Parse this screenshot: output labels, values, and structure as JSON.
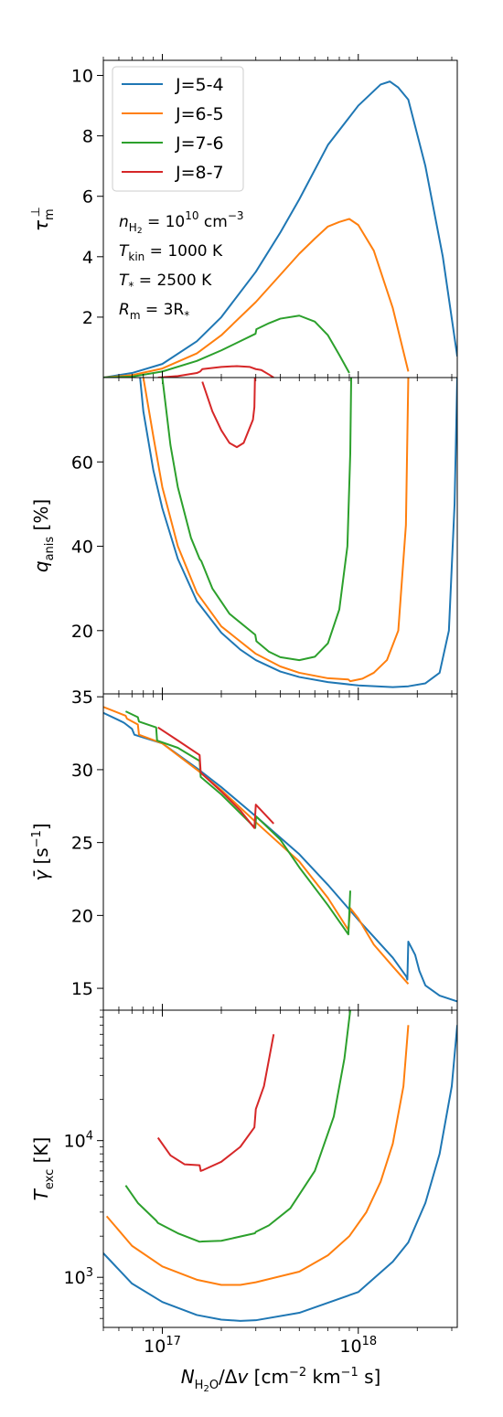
{
  "figure": {
    "xlabel": "N_H2O/Δv [cm^-2 km^-1 s]"
  },
  "legend": {
    "entries": [
      {
        "label": "J=5-4",
        "color": "#1f77b4"
      },
      {
        "label": "J=6-5",
        "color": "#ff7f0e"
      },
      {
        "label": "J=7-6",
        "color": "#2ca02c"
      },
      {
        "label": "J=8-7",
        "color": "#d62728"
      }
    ],
    "placement": "upper-left of top panel"
  },
  "annotations": [
    {
      "var": "n",
      "sub": "H2",
      "rest": " = 10",
      "sup": "10",
      "unit": " cm",
      "unitsup": "−3"
    },
    {
      "var": "T",
      "sub": "kin",
      "rest": " = 1000 K"
    },
    {
      "var": "T",
      "sub": "*",
      "rest": " = 2500 K"
    },
    {
      "var": "R",
      "sub": "m",
      "rest": " = 3R",
      "tail": "*"
    }
  ],
  "chart_data": [
    {
      "type": "line",
      "ylabel": "τ_m^⊥",
      "xscale": "log",
      "yscale": "linear",
      "xlim": [
        5e+16,
        3.2e+18
      ],
      "ylim": [
        0,
        10.5
      ],
      "yticks": [
        2,
        4,
        6,
        8,
        10
      ],
      "xticks": [
        1e+17,
        1e+18
      ],
      "xtick_labels": [
        "10^17",
        "10^18"
      ],
      "series": [
        {
          "name": "J=5-4",
          "color": "#1f77b4",
          "x": [
            5e+16,
            7e+16,
            1e+17,
            1.5e+17,
            2e+17,
            3e+17,
            4e+17,
            5e+17,
            7e+17,
            1e+18,
            1.3e+18,
            1.45e+18,
            1.6e+18,
            1.8e+18,
            2.2e+18,
            2.7e+18,
            3.2e+18
          ],
          "y": [
            0.0,
            0.15,
            0.45,
            1.2,
            2.0,
            3.5,
            4.8,
            5.9,
            7.7,
            9.0,
            9.7,
            9.8,
            9.6,
            9.2,
            7.0,
            4.0,
            0.7
          ]
        },
        {
          "name": "J=6-5",
          "color": "#ff7f0e",
          "x": [
            5e+16,
            7e+16,
            1e+17,
            1.5e+17,
            2e+17,
            3e+17,
            4e+17,
            5e+17,
            6e+17,
            7e+17,
            8e+17,
            9e+17,
            1e+18,
            1.2e+18,
            1.5e+18,
            1.8e+18
          ],
          "y": [
            0.0,
            0.08,
            0.3,
            0.8,
            1.4,
            2.5,
            3.4,
            4.1,
            4.6,
            5.0,
            5.15,
            5.25,
            5.05,
            4.2,
            2.3,
            0.2
          ]
        },
        {
          "name": "J=7-6",
          "color": "#2ca02c",
          "x": [
            5e+16,
            7e+16,
            1e+17,
            1.5e+17,
            2e+17,
            2.99e+17,
            3.02e+17,
            3.5e+17,
            4e+17,
            5e+17,
            6e+17,
            7e+17,
            8e+17,
            9e+17
          ],
          "y": [
            0.0,
            0.03,
            0.2,
            0.55,
            0.9,
            1.45,
            1.6,
            1.8,
            1.95,
            2.05,
            1.85,
            1.4,
            0.75,
            0.15
          ]
        },
        {
          "name": "J=8-7",
          "color": "#d62728",
          "x": [
            9.5e+16,
            1.2e+17,
            1.5e+17,
            1.56e+17,
            1.6e+17,
            2e+17,
            2.4e+17,
            2.8e+17,
            3e+17,
            3.2e+17,
            3.5e+17,
            3.7e+17
          ],
          "y": [
            0.0,
            0.05,
            0.15,
            0.2,
            0.28,
            0.35,
            0.38,
            0.35,
            0.28,
            0.25,
            0.1,
            0.0
          ]
        }
      ]
    },
    {
      "type": "line",
      "ylabel": "q_anis [%]",
      "xscale": "log",
      "yscale": "linear",
      "xlim": [
        5e+16,
        3.2e+18
      ],
      "ylim": [
        5,
        80
      ],
      "yticks": [
        20,
        40,
        60
      ],
      "series": [
        {
          "name": "J=5-4",
          "color": "#1f77b4",
          "x": [
            7.7e+16,
            8e+16,
            9e+16,
            1e+17,
            1.2e+17,
            1.5e+17,
            2e+17,
            2.5e+17,
            3e+17,
            4e+17,
            5e+17,
            7e+17,
            1e+18,
            1.5e+18,
            1.8e+18,
            2.2e+18,
            2.6e+18,
            2.9e+18,
            3.1e+18,
            3.2e+18
          ],
          "y": [
            80,
            72,
            58,
            49,
            37,
            27,
            19.5,
            15.5,
            13,
            10.3,
            9,
            7.8,
            7,
            6.6,
            6.8,
            7.5,
            10,
            20,
            50,
            80
          ]
        },
        {
          "name": "J=6-5",
          "color": "#ff7f0e",
          "x": [
            8e+16,
            9e+16,
            1e+17,
            1.2e+17,
            1.5e+17,
            2e+17,
            3e+17,
            4e+17,
            5e+17,
            7e+17,
            8.9e+17,
            9.1e+17,
            1.05e+18,
            1.2e+18,
            1.4e+18,
            1.6e+18,
            1.75e+18,
            1.8e+18
          ],
          "y": [
            80,
            66,
            54,
            40,
            29,
            21,
            14.5,
            11.5,
            10,
            8.7,
            8.4,
            8,
            8.6,
            10,
            13,
            20,
            45,
            80
          ]
        },
        {
          "name": "J=7-6",
          "color": "#2ca02c",
          "x": [
            1e+17,
            1.1e+17,
            1.2e+17,
            1.4e+17,
            1.55e+17,
            1.58e+17,
            1.8e+17,
            2.2e+17,
            2.98e+17,
            3.02e+17,
            3.5e+17,
            4e+17,
            5e+17,
            6e+17,
            7e+17,
            8e+17,
            8.8e+17,
            9.1e+17,
            9.2e+17
          ],
          "y": [
            80,
            64,
            54,
            42,
            37,
            36.5,
            30,
            24,
            19,
            17.5,
            15,
            13.7,
            13,
            13.8,
            17,
            25,
            40,
            62,
            80
          ]
        },
        {
          "name": "J=8-7",
          "color": "#d62728",
          "x": [
            1.6e+17,
            1.8e+17,
            2e+17,
            2.2e+17,
            2.4e+17,
            2.6e+17,
            2.9e+17,
            2.95e+17,
            2.97e+17
          ],
          "y": [
            79,
            72,
            67.5,
            64.5,
            63.5,
            64.5,
            70,
            73,
            80
          ]
        }
      ]
    },
    {
      "type": "line",
      "ylabel": "γ̄ [s^-1]",
      "xscale": "log",
      "yscale": "linear",
      "xlim": [
        5e+16,
        3.2e+18
      ],
      "ylim": [
        13.5,
        35.2
      ],
      "yticks": [
        15,
        20,
        25,
        30,
        35
      ],
      "series": [
        {
          "name": "J=5-4",
          "color": "#1f77b4",
          "x": [
            5e+16,
            6.2e+16,
            6.4e+16,
            7e+16,
            7.2e+16,
            1e+17,
            1.5e+17,
            2e+17,
            3e+17,
            5e+17,
            7e+17,
            1e+18,
            1.5e+18,
            1.76e+18,
            1.78e+18,
            1.8e+18,
            1.95e+18,
            2.05e+18,
            2.2e+18,
            2.6e+18,
            3.2e+18
          ],
          "y": [
            33.9,
            33.3,
            33.2,
            32.8,
            32.4,
            31.8,
            30.1,
            28.8,
            26.8,
            24.2,
            22.1,
            19.7,
            17.1,
            15.8,
            15.6,
            18.2,
            17.3,
            16.2,
            15.2,
            14.5,
            14.1
          ]
        },
        {
          "name": "J=6-5",
          "color": "#ff7f0e",
          "x": [
            5e+16,
            6.5e+16,
            6.6e+16,
            7.5e+16,
            7.6e+16,
            1e+17,
            1.5e+17,
            2e+17,
            3e+17,
            5e+17,
            7e+17,
            8.9e+17,
            9.1e+17,
            1e+18,
            1.2e+18,
            1.5e+18,
            1.8e+18
          ],
          "y": [
            34.3,
            33.7,
            33.5,
            33.1,
            32.4,
            31.8,
            30.0,
            28.6,
            26.4,
            23.7,
            21.2,
            19.0,
            20.5,
            19.8,
            18.0,
            16.5,
            15.3
          ]
        },
        {
          "name": "J=7-6",
          "color": "#2ca02c",
          "x": [
            6.5e+16,
            7.5e+16,
            7.6e+16,
            9.3e+16,
            9.4e+16,
            1.2e+17,
            1.55e+17,
            1.57e+17,
            2e+17,
            2.98e+17,
            3.01e+17,
            4e+17,
            5e+17,
            7e+17,
            8.9e+17,
            9.1e+17
          ],
          "y": [
            34.0,
            33.6,
            33.3,
            32.9,
            32.0,
            31.5,
            30.6,
            29.5,
            28.3,
            26.0,
            26.8,
            25.2,
            23.3,
            20.7,
            18.7,
            21.7
          ]
        },
        {
          "name": "J=8-7",
          "color": "#d62728",
          "x": [
            9.5e+16,
            1.2e+17,
            1.55e+17,
            1.57e+17,
            2e+17,
            2.5e+17,
            2.95e+17,
            3e+17,
            3.7e+17
          ],
          "y": [
            32.9,
            32.0,
            31.0,
            29.8,
            28.5,
            27.2,
            26.0,
            27.6,
            26.3
          ]
        }
      ]
    },
    {
      "type": "line",
      "ylabel": "T_exc [K]",
      "xscale": "log",
      "yscale": "log",
      "xlim": [
        5e+16,
        3.2e+18
      ],
      "ylim": [
        430,
        90000
      ],
      "yticks": [
        1000,
        10000
      ],
      "ytick_labels": [
        "10^3",
        "10^4"
      ],
      "series": [
        {
          "name": "J=5-4",
          "color": "#1f77b4",
          "x": [
            5e+16,
            7e+16,
            1e+17,
            1.5e+17,
            2e+17,
            2.5e+17,
            3e+17,
            5e+17,
            1e+18,
            1.5e+18,
            1.8e+18,
            2.2e+18,
            2.6e+18,
            3e+18,
            3.2e+18
          ],
          "y": [
            1500,
            900,
            660,
            530,
            490,
            480,
            485,
            550,
            780,
            1300,
            1800,
            3500,
            8000,
            25000,
            70000
          ]
        },
        {
          "name": "J=6-5",
          "color": "#ff7f0e",
          "x": [
            5.2e+16,
            7e+16,
            1e+17,
            1.5e+17,
            2e+17,
            2.5e+17,
            3e+17,
            5e+17,
            7e+17,
            9e+17,
            1.1e+18,
            1.3e+18,
            1.5e+18,
            1.7e+18,
            1.8e+18
          ],
          "y": [
            2800,
            1700,
            1200,
            960,
            880,
            880,
            920,
            1100,
            1450,
            2000,
            3000,
            5000,
            9500,
            25000,
            70000
          ]
        },
        {
          "name": "J=7-6",
          "color": "#2ca02c",
          "x": [
            6.5e+16,
            7.5e+16,
            9.3e+16,
            9.5e+16,
            1.2e+17,
            1.55e+17,
            1.6e+17,
            2e+17,
            2.97e+17,
            3e+17,
            3.5e+17,
            4.5e+17,
            6e+17,
            7.5e+17,
            8.5e+17,
            9.1e+17
          ],
          "y": [
            4700,
            3500,
            2600,
            2500,
            2100,
            1820,
            1830,
            1850,
            2100,
            2150,
            2400,
            3200,
            6000,
            15000,
            40000,
            90000
          ]
        },
        {
          "name": "J=8-7",
          "color": "#d62728",
          "x": [
            9.5e+16,
            1.1e+17,
            1.3e+17,
            1.55e+17,
            1.57e+17,
            1.62e+17,
            2e+17,
            2.5e+17,
            2.95e+17,
            3e+17,
            3.3e+17,
            3.7e+17
          ],
          "y": [
            10500,
            7800,
            6700,
            6600,
            6000,
            6100,
            7000,
            9000,
            12500,
            17000,
            25000,
            60000
          ]
        }
      ]
    }
  ]
}
